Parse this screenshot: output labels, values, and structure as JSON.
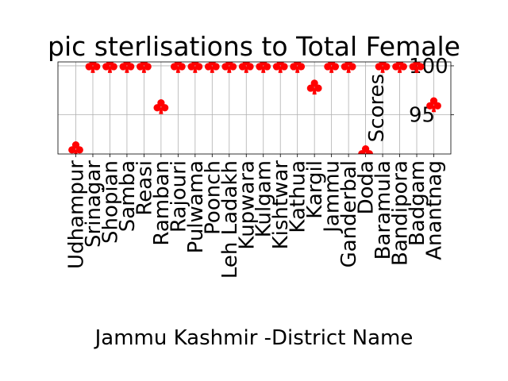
{
  "chart_data": {
    "type": "scatter",
    "title": "pic sterlisations to Total Female",
    "xlabel": "Jammu Kashmir -District Name",
    "ylabel": "Scores",
    "marker": "club",
    "marker_color": "#ff0000",
    "grid": true,
    "ylim": [
      91,
      100.4
    ],
    "yticks": [
      95,
      100
    ],
    "categories": [
      "Udhampur",
      "Srinagar",
      "Shopian",
      "Samba",
      "Reasi",
      "Ramban",
      "Rajouri",
      "Pulwama",
      "Poonch",
      "Leh Ladakh",
      "Kupwara",
      "Kulgam",
      "Kishtwar",
      "Kathua",
      "Kargil",
      "Jammu",
      "Ganderbal",
      "Doda",
      "Baramula",
      "Bandipora",
      "Badgam",
      "Anantnag"
    ],
    "values": [
      91.5,
      100,
      100,
      100,
      100,
      95.8,
      100,
      100,
      100,
      100,
      100,
      100,
      100,
      100,
      97.8,
      100,
      100,
      91.1,
      100,
      100,
      100,
      96.0
    ]
  }
}
